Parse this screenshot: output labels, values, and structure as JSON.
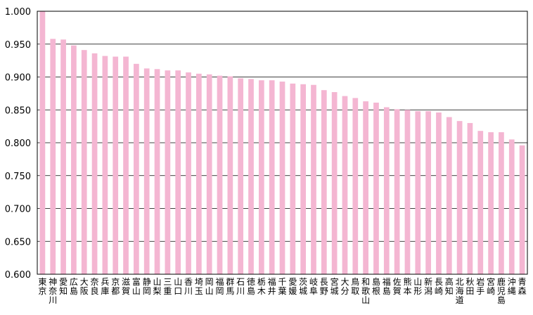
{
  "chart_data": {
    "type": "bar",
    "title": "",
    "xlabel": "",
    "ylabel": "",
    "ylim": [
      0.6,
      1.0
    ],
    "y_ticks": [
      "0.600",
      "0.650",
      "0.700",
      "0.750",
      "0.800",
      "0.850",
      "0.900",
      "0.950",
      "1.000"
    ],
    "grid": true,
    "legend": "none",
    "bar_color": "#f4b6d2",
    "categories": [
      "東京",
      "神奈川",
      "愛知",
      "広島",
      "大阪",
      "奈良",
      "兵庫",
      "京都",
      "滋賀",
      "富山",
      "静岡",
      "山梨",
      "三重",
      "山口",
      "香川",
      "埼玉",
      "岡山",
      "福岡",
      "群馬",
      "石川",
      "徳島",
      "栃木",
      "福井",
      "千葉",
      "愛媛",
      "茨城",
      "岐阜",
      "長野",
      "宮城",
      "大分",
      "鳥取",
      "和歌山",
      "島根",
      "福島",
      "佐賀",
      "熊本",
      "山形",
      "新潟",
      "長崎",
      "高知",
      "北海道",
      "秋田",
      "岩手",
      "宮崎",
      "鹿児島",
      "沖縄",
      "青森"
    ],
    "values": [
      1.0,
      0.958,
      0.957,
      0.948,
      0.941,
      0.936,
      0.932,
      0.931,
      0.931,
      0.92,
      0.913,
      0.912,
      0.91,
      0.91,
      0.907,
      0.905,
      0.904,
      0.902,
      0.901,
      0.898,
      0.897,
      0.895,
      0.895,
      0.893,
      0.89,
      0.889,
      0.888,
      0.88,
      0.877,
      0.871,
      0.868,
      0.863,
      0.861,
      0.854,
      0.851,
      0.85,
      0.848,
      0.848,
      0.846,
      0.839,
      0.833,
      0.83,
      0.818,
      0.816,
      0.816,
      0.805,
      0.796
    ]
  }
}
